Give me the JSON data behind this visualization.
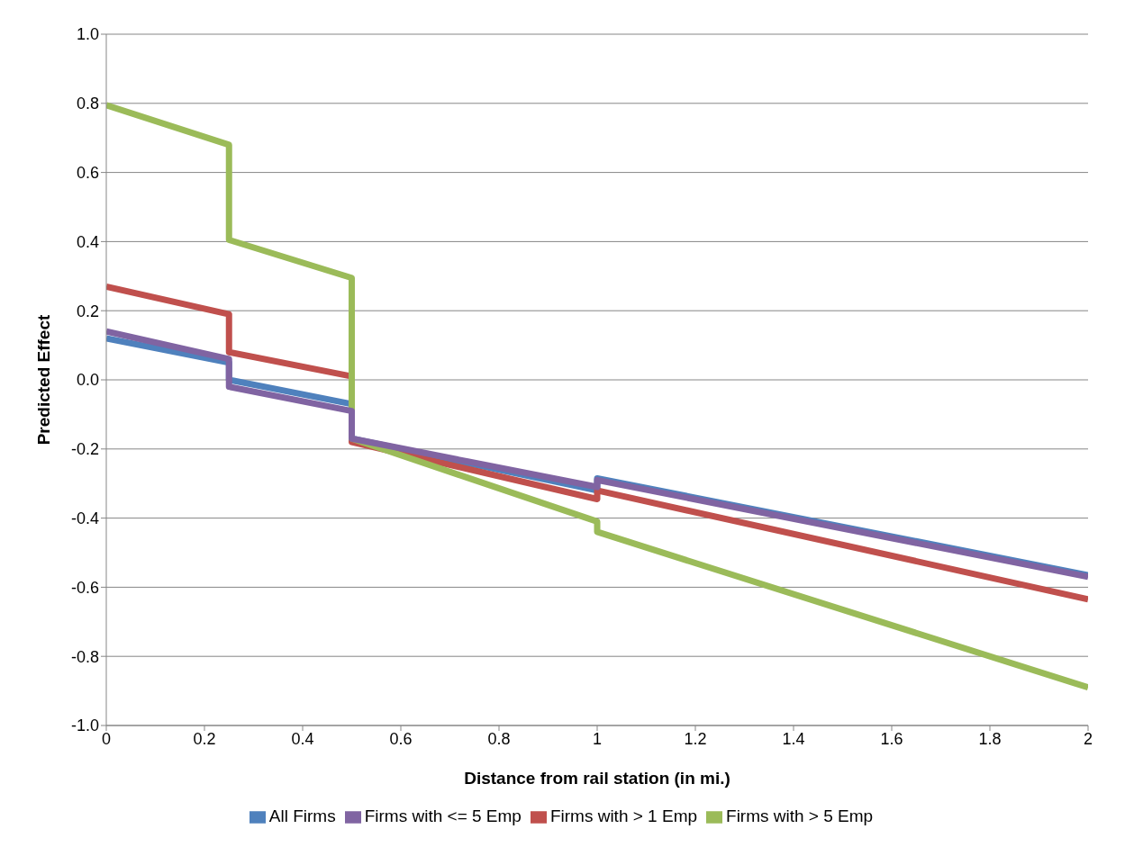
{
  "chart_data": {
    "type": "line",
    "xlabel": "Distance from rail station (in mi.)",
    "ylabel": "Predicted Effect",
    "xlim": [
      0,
      2
    ],
    "xticks": [
      0,
      0.2,
      0.4,
      0.6,
      0.8,
      1,
      1.2,
      1.4,
      1.6,
      1.8,
      2
    ],
    "ylim": [
      -1,
      1
    ],
    "yticks": [
      {
        "value": -1,
        "label": "-1.0"
      },
      {
        "value": -0.8,
        "label": "-0.8"
      },
      {
        "value": -0.6,
        "label": "-0.6"
      },
      {
        "value": -0.4,
        "label": "-0.4"
      },
      {
        "value": -0.2,
        "label": "-0.2"
      },
      {
        "value": 0,
        "label": "0.0"
      },
      {
        "value": 0.2,
        "label": "0.2"
      },
      {
        "value": 0.4,
        "label": "0.4"
      },
      {
        "value": 0.6,
        "label": "0.6"
      },
      {
        "value": 0.8,
        "label": "0.8"
      },
      {
        "value": 1,
        "label": "1.0"
      }
    ],
    "grid": "y",
    "legend": "bottom",
    "marker": "none",
    "line_style": "solid",
    "series": [
      {
        "name": "All Firms",
        "color": "#4f81bd",
        "x": [
          0,
          0.25,
          0.25,
          0.5,
          0.5,
          1,
          1,
          2
        ],
        "values": [
          0.12,
          0.05,
          0,
          -0.07,
          -0.17,
          -0.32,
          -0.285,
          -0.565
        ]
      },
      {
        "name": "Firms with > 1 Emp",
        "color": "#c0504d",
        "x": [
          0,
          0.25,
          0.25,
          0.5,
          0.5,
          1,
          1,
          2
        ],
        "values": [
          0.27,
          0.19,
          0.08,
          0.01,
          -0.18,
          -0.345,
          -0.32,
          -0.635
        ]
      },
      {
        "name": "Firms with > 5 Emp",
        "color": "#9bbb59",
        "x": [
          0,
          0.25,
          0.25,
          0.5,
          0.5,
          1,
          1,
          2
        ],
        "values": [
          0.795,
          0.68,
          0.405,
          0.295,
          -0.17,
          -0.41,
          -0.44,
          -0.89
        ]
      },
      {
        "name": "Firms with <= 5 Emp",
        "color": "#8064a2",
        "x": [
          0,
          0.25,
          0.25,
          0.5,
          0.5,
          1,
          1,
          2
        ],
        "values": [
          0.14,
          0.06,
          -0.02,
          -0.09,
          -0.17,
          -0.31,
          -0.29,
          -0.57
        ]
      }
    ]
  }
}
